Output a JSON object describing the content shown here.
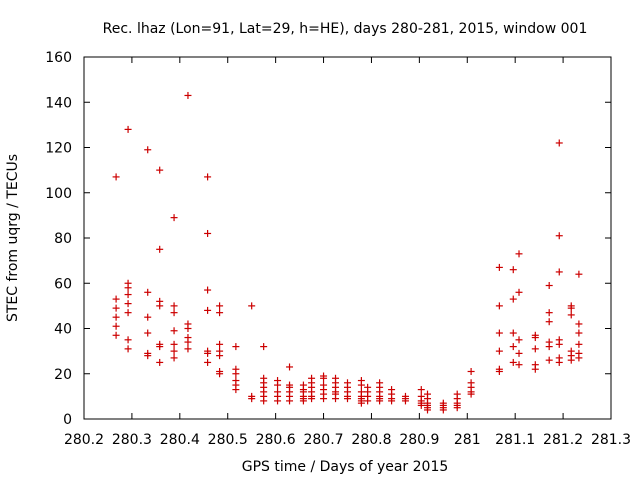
{
  "chart_data": {
    "type": "scatter",
    "title": "Rec. lhaz (Lon=91, Lat=29, h=HE), days 280-281, 2015, window 001",
    "xlabel": "GPS time / Days of year 2015",
    "ylabel": "STEC from uqrg / TECUs",
    "xlim": [
      280.2,
      281.3
    ],
    "ylim": [
      0,
      160
    ],
    "xticks": [
      280.2,
      280.3,
      280.4,
      280.5,
      280.6,
      280.7,
      280.8,
      280.9,
      281,
      281.1,
      281.2,
      281.3
    ],
    "xtick_labels": [
      "280.2",
      "280.3",
      "280.4",
      "280.5",
      "280.6",
      "280.7",
      "280.8",
      "280.9",
      "281",
      "281.1",
      "281.2",
      "281.3"
    ],
    "yticks": [
      0,
      20,
      40,
      60,
      80,
      100,
      120,
      140,
      160
    ],
    "ytick_labels": [
      "0",
      "20",
      "40",
      "60",
      "80",
      "100",
      "120",
      "140",
      "160"
    ],
    "grid": false,
    "marker": "+",
    "color": "#cc0000",
    "series": [
      {
        "name": "STEC",
        "points": [
          [
            280.267,
            107
          ],
          [
            280.267,
            53
          ],
          [
            280.267,
            49
          ],
          [
            280.267,
            45
          ],
          [
            280.267,
            41
          ],
          [
            280.267,
            37
          ],
          [
            280.292,
            128
          ],
          [
            280.292,
            60
          ],
          [
            280.292,
            58
          ],
          [
            280.292,
            55
          ],
          [
            280.292,
            51
          ],
          [
            280.292,
            47
          ],
          [
            280.292,
            35
          ],
          [
            280.292,
            31
          ],
          [
            280.333,
            119
          ],
          [
            280.333,
            56
          ],
          [
            280.333,
            45
          ],
          [
            280.333,
            38
          ],
          [
            280.333,
            29
          ],
          [
            280.333,
            28
          ],
          [
            280.358,
            110
          ],
          [
            280.358,
            75
          ],
          [
            280.358,
            52
          ],
          [
            280.358,
            50
          ],
          [
            280.358,
            33
          ],
          [
            280.358,
            32
          ],
          [
            280.358,
            25
          ],
          [
            280.388,
            89
          ],
          [
            280.388,
            50
          ],
          [
            280.388,
            47
          ],
          [
            280.388,
            39
          ],
          [
            280.388,
            33
          ],
          [
            280.388,
            30
          ],
          [
            280.388,
            27
          ],
          [
            280.417,
            143
          ],
          [
            280.417,
            42
          ],
          [
            280.417,
            40
          ],
          [
            280.417,
            36
          ],
          [
            280.417,
            34
          ],
          [
            280.417,
            31
          ],
          [
            280.458,
            107
          ],
          [
            280.458,
            82
          ],
          [
            280.458,
            57
          ],
          [
            280.458,
            48
          ],
          [
            280.458,
            30
          ],
          [
            280.458,
            29
          ],
          [
            280.458,
            25
          ],
          [
            280.483,
            50
          ],
          [
            280.483,
            47
          ],
          [
            280.483,
            33
          ],
          [
            280.483,
            30
          ],
          [
            280.483,
            28
          ],
          [
            280.483,
            21
          ],
          [
            280.483,
            20
          ],
          [
            280.517,
            32
          ],
          [
            280.517,
            22
          ],
          [
            280.517,
            20
          ],
          [
            280.517,
            17
          ],
          [
            280.517,
            15
          ],
          [
            280.517,
            13
          ],
          [
            280.55,
            50
          ],
          [
            280.55,
            10
          ],
          [
            280.55,
            9
          ],
          [
            280.575,
            32
          ],
          [
            280.575,
            18
          ],
          [
            280.575,
            16
          ],
          [
            280.575,
            14
          ],
          [
            280.575,
            12
          ],
          [
            280.575,
            10
          ],
          [
            280.575,
            8
          ],
          [
            280.604,
            17
          ],
          [
            280.604,
            15
          ],
          [
            280.604,
            12
          ],
          [
            280.604,
            10
          ],
          [
            280.604,
            8
          ],
          [
            280.629,
            23
          ],
          [
            280.629,
            15
          ],
          [
            280.629,
            14
          ],
          [
            280.629,
            12
          ],
          [
            280.629,
            10
          ],
          [
            280.629,
            8
          ],
          [
            280.658,
            15
          ],
          [
            280.658,
            13
          ],
          [
            280.658,
            12
          ],
          [
            280.658,
            10
          ],
          [
            280.658,
            9
          ],
          [
            280.658,
            8
          ],
          [
            280.675,
            18
          ],
          [
            280.675,
            16
          ],
          [
            280.675,
            14
          ],
          [
            280.675,
            12
          ],
          [
            280.675,
            10
          ],
          [
            280.675,
            9
          ],
          [
            280.7,
            19
          ],
          [
            280.7,
            18
          ],
          [
            280.7,
            15
          ],
          [
            280.7,
            13
          ],
          [
            280.7,
            11
          ],
          [
            280.7,
            9
          ],
          [
            280.725,
            18
          ],
          [
            280.725,
            16
          ],
          [
            280.725,
            14
          ],
          [
            280.725,
            12
          ],
          [
            280.725,
            11
          ],
          [
            280.725,
            9
          ],
          [
            280.75,
            16
          ],
          [
            280.75,
            14
          ],
          [
            280.75,
            12
          ],
          [
            280.75,
            10
          ],
          [
            280.75,
            9
          ],
          [
            280.779,
            17
          ],
          [
            280.779,
            15
          ],
          [
            280.779,
            12
          ],
          [
            280.779,
            10
          ],
          [
            280.779,
            9
          ],
          [
            280.779,
            8
          ],
          [
            280.779,
            7
          ],
          [
            280.792,
            14
          ],
          [
            280.792,
            12
          ],
          [
            280.792,
            10
          ],
          [
            280.792,
            8
          ],
          [
            280.817,
            16
          ],
          [
            280.817,
            14
          ],
          [
            280.817,
            12
          ],
          [
            280.817,
            10
          ],
          [
            280.817,
            9
          ],
          [
            280.817,
            8
          ],
          [
            280.842,
            13
          ],
          [
            280.842,
            11
          ],
          [
            280.842,
            9
          ],
          [
            280.842,
            8
          ],
          [
            280.871,
            10
          ],
          [
            280.871,
            9
          ],
          [
            280.871,
            8
          ],
          [
            280.904,
            13
          ],
          [
            280.904,
            10
          ],
          [
            280.904,
            8
          ],
          [
            280.904,
            7
          ],
          [
            280.904,
            6
          ],
          [
            280.917,
            11
          ],
          [
            280.917,
            9
          ],
          [
            280.917,
            7
          ],
          [
            280.917,
            6
          ],
          [
            280.917,
            5
          ],
          [
            280.917,
            4
          ],
          [
            280.95,
            7
          ],
          [
            280.95,
            6
          ],
          [
            280.95,
            5
          ],
          [
            280.95,
            4
          ],
          [
            280.979,
            11
          ],
          [
            280.979,
            9
          ],
          [
            280.979,
            7
          ],
          [
            280.979,
            6
          ],
          [
            280.979,
            5
          ],
          [
            281.008,
            21
          ],
          [
            281.008,
            16
          ],
          [
            281.008,
            14
          ],
          [
            281.008,
            12
          ],
          [
            281.008,
            11
          ],
          [
            281.067,
            67
          ],
          [
            281.067,
            50
          ],
          [
            281.067,
            38
          ],
          [
            281.067,
            30
          ],
          [
            281.067,
            22
          ],
          [
            281.067,
            21
          ],
          [
            281.096,
            66
          ],
          [
            281.096,
            53
          ],
          [
            281.096,
            38
          ],
          [
            281.096,
            32
          ],
          [
            281.096,
            25
          ],
          [
            281.108,
            73
          ],
          [
            281.108,
            56
          ],
          [
            281.108,
            35
          ],
          [
            281.108,
            29
          ],
          [
            281.108,
            24
          ],
          [
            281.142,
            37
          ],
          [
            281.142,
            36
          ],
          [
            281.142,
            31
          ],
          [
            281.142,
            24
          ],
          [
            281.142,
            22
          ],
          [
            281.171,
            59
          ],
          [
            281.171,
            47
          ],
          [
            281.171,
            43
          ],
          [
            281.171,
            34
          ],
          [
            281.171,
            32
          ],
          [
            281.171,
            26
          ],
          [
            281.192,
            122
          ],
          [
            281.192,
            81
          ],
          [
            281.192,
            65
          ],
          [
            281.192,
            35
          ],
          [
            281.192,
            33
          ],
          [
            281.192,
            27
          ],
          [
            281.192,
            25
          ],
          [
            281.217,
            50
          ],
          [
            281.217,
            49
          ],
          [
            281.217,
            46
          ],
          [
            281.217,
            30
          ],
          [
            281.217,
            28
          ],
          [
            281.217,
            26
          ],
          [
            281.233,
            64
          ],
          [
            281.233,
            42
          ],
          [
            281.233,
            38
          ],
          [
            281.233,
            33
          ],
          [
            281.233,
            29
          ],
          [
            281.233,
            27
          ]
        ]
      }
    ]
  }
}
